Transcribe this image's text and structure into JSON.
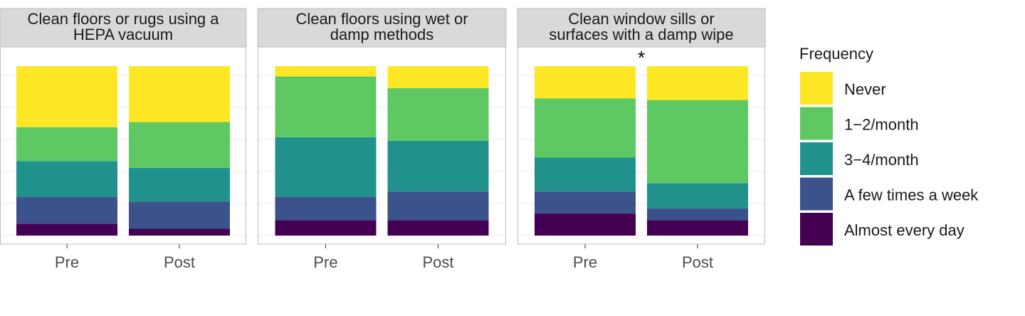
{
  "chart_data": {
    "type": "bar",
    "stacked": true,
    "proportional": true,
    "categories": [
      "Pre",
      "Post"
    ],
    "panels": [
      {
        "title": [
          "Clean floors or rugs using a",
          "HEPA vacuum"
        ],
        "annotation": "",
        "values": {
          "Pre": {
            "Almost every day": 0.07,
            "A few times a week": 0.16,
            "3-4/month": 0.21,
            "1-2/month": 0.2,
            "Never": 0.36
          },
          "Post": {
            "Almost every day": 0.04,
            "A few times a week": 0.16,
            "3-4/month": 0.2,
            "1-2/month": 0.27,
            "Never": 0.33
          }
        }
      },
      {
        "title": [
          "Clean floors using wet or",
          "damp methods"
        ],
        "annotation": "",
        "values": {
          "Pre": {
            "Almost every day": 0.09,
            "A few times a week": 0.14,
            "3-4/month": 0.35,
            "1-2/month": 0.36,
            "Never": 0.06
          },
          "Post": {
            "Almost every day": 0.09,
            "A few times a week": 0.17,
            "3-4/month": 0.3,
            "1-2/month": 0.31,
            "Never": 0.13
          }
        }
      },
      {
        "title": [
          "Clean window sills or",
          "surfaces with a damp wipe"
        ],
        "annotation": "*",
        "values": {
          "Pre": {
            "Almost every day": 0.13,
            "A few times a week": 0.13,
            "3-4/month": 0.2,
            "1-2/month": 0.35,
            "Never": 0.19
          },
          "Post": {
            "Almost every day": 0.09,
            "A few times a week": 0.07,
            "3-4/month": 0.15,
            "1-2/month": 0.49,
            "Never": 0.2
          }
        }
      }
    ],
    "legend": {
      "title": "Frequency",
      "position": "right",
      "items": [
        {
          "label": "Never",
          "key": "Never",
          "color": "#FDE725"
        },
        {
          "label": "1−2/month",
          "key": "1-2/month",
          "color": "#5EC962"
        },
        {
          "label": "3−4/month",
          "key": "3-4/month",
          "color": "#21918C"
        },
        {
          "label": "A few times a week",
          "key": "A few times a week",
          "color": "#3B528B"
        },
        {
          "label": "Almost every day",
          "key": "Almost every day",
          "color": "#440154"
        }
      ]
    },
    "stack_order_bottom_to_top": [
      "Almost every day",
      "A few times a week",
      "3-4/month",
      "1-2/month",
      "Never"
    ],
    "grid": true,
    "xlabel": "",
    "ylabel": "",
    "ylim": [
      0,
      1
    ]
  }
}
